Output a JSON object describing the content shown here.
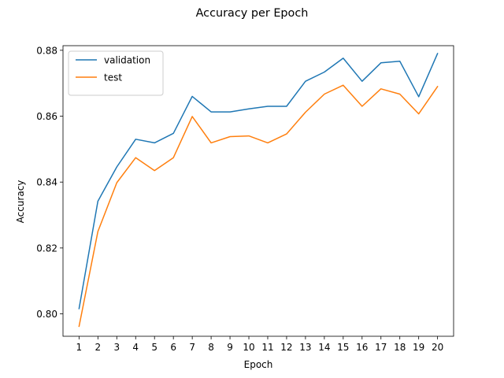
{
  "chart_data": {
    "type": "line",
    "title": "Accuracy per Epoch",
    "xlabel": "Epoch",
    "ylabel": "Accuracy",
    "x": [
      1,
      2,
      3,
      4,
      5,
      6,
      7,
      8,
      9,
      10,
      11,
      12,
      13,
      14,
      15,
      16,
      17,
      18,
      19,
      20
    ],
    "xlim": [
      0.15,
      20.85
    ],
    "ylim": [
      0.7932,
      0.8814
    ],
    "yticks": [
      0.8,
      0.82,
      0.84,
      0.86,
      0.88
    ],
    "ytick_labels": [
      "0.80",
      "0.82",
      "0.84",
      "0.86",
      "0.88"
    ],
    "grid": false,
    "legend": "upper left",
    "series": [
      {
        "name": "validation",
        "color": "#1f77b4",
        "values": [
          0.8016,
          0.8342,
          0.8446,
          0.853,
          0.8519,
          0.8548,
          0.866,
          0.8613,
          0.8613,
          0.8622,
          0.863,
          0.863,
          0.8706,
          0.8734,
          0.8776,
          0.8706,
          0.8762,
          0.8767,
          0.8659,
          0.879
        ]
      },
      {
        "name": "test",
        "color": "#ff7f0e",
        "values": [
          0.7962,
          0.825,
          0.8398,
          0.8474,
          0.8435,
          0.8474,
          0.8599,
          0.8519,
          0.8538,
          0.854,
          0.8519,
          0.8546,
          0.8612,
          0.8667,
          0.8694,
          0.863,
          0.8683,
          0.8667,
          0.8607,
          0.869
        ]
      }
    ]
  }
}
